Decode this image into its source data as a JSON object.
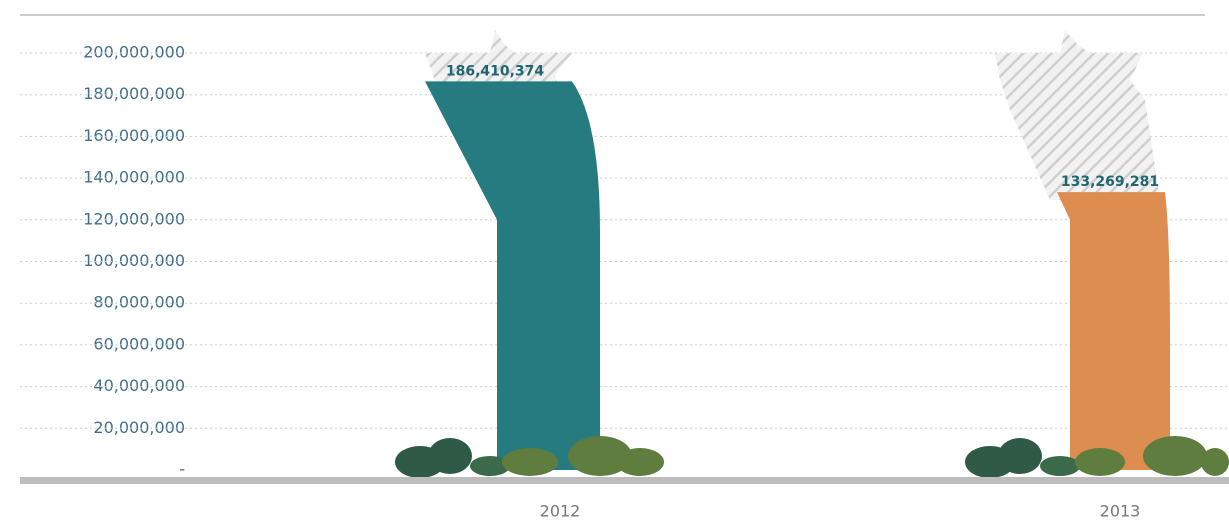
{
  "chart_data": {
    "type": "bar",
    "categories": [
      "2012",
      "2013"
    ],
    "series": [
      {
        "values": [
          186410374,
          133269281
        ],
        "value_labels": [
          "186,410,374",
          "133,269,281"
        ],
        "colors": [
          "#267b80",
          "#dc8d4f"
        ]
      }
    ],
    "ylim": [
      0,
      200000000
    ],
    "yticks": [
      {
        "value": 0,
        "label": "-"
      },
      {
        "value": 20000000,
        "label": "20,000,000"
      },
      {
        "value": 40000000,
        "label": "40,000,000"
      },
      {
        "value": 60000000,
        "label": "60,000,000"
      },
      {
        "value": 80000000,
        "label": "80,000,000"
      },
      {
        "value": 100000000,
        "label": "100,000,000"
      },
      {
        "value": 120000000,
        "label": "120,000,000"
      },
      {
        "value": 140000000,
        "label": "140,000,000"
      },
      {
        "value": 160000000,
        "label": "160,000,000"
      },
      {
        "value": 180000000,
        "label": "180,000,000"
      },
      {
        "value": 200000000,
        "label": "200,000,000"
      }
    ],
    "grid": true
  }
}
